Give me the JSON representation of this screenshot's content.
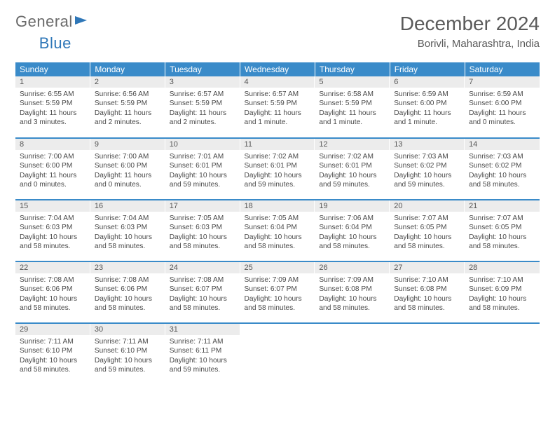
{
  "brand": {
    "part1": "General",
    "part2": "Blue"
  },
  "header": {
    "month": "December 2024",
    "location": "Borivli, Maharashtra, India"
  },
  "colors": {
    "header_bg": "#3a8bc9",
    "header_text": "#ffffff",
    "border": "#3a8bc9",
    "daynum_bg": "#ececec",
    "text": "#4a4a4a",
    "brand_gray": "#6a6a6a",
    "brand_blue": "#2f77b8",
    "bg": "#ffffff"
  },
  "typography": {
    "month_fontsize": 28,
    "location_fontsize": 15,
    "dayhead_fontsize": 12,
    "daynum_fontsize": 11,
    "body_fontsize": 10.2
  },
  "day_headers": [
    "Sunday",
    "Monday",
    "Tuesday",
    "Wednesday",
    "Thursday",
    "Friday",
    "Saturday"
  ],
  "weeks": [
    [
      {
        "n": "1",
        "sr": "Sunrise: 6:55 AM",
        "ss": "Sunset: 5:59 PM",
        "dl": "Daylight: 11 hours and 3 minutes."
      },
      {
        "n": "2",
        "sr": "Sunrise: 6:56 AM",
        "ss": "Sunset: 5:59 PM",
        "dl": "Daylight: 11 hours and 2 minutes."
      },
      {
        "n": "3",
        "sr": "Sunrise: 6:57 AM",
        "ss": "Sunset: 5:59 PM",
        "dl": "Daylight: 11 hours and 2 minutes."
      },
      {
        "n": "4",
        "sr": "Sunrise: 6:57 AM",
        "ss": "Sunset: 5:59 PM",
        "dl": "Daylight: 11 hours and 1 minute."
      },
      {
        "n": "5",
        "sr": "Sunrise: 6:58 AM",
        "ss": "Sunset: 5:59 PM",
        "dl": "Daylight: 11 hours and 1 minute."
      },
      {
        "n": "6",
        "sr": "Sunrise: 6:59 AM",
        "ss": "Sunset: 6:00 PM",
        "dl": "Daylight: 11 hours and 1 minute."
      },
      {
        "n": "7",
        "sr": "Sunrise: 6:59 AM",
        "ss": "Sunset: 6:00 PM",
        "dl": "Daylight: 11 hours and 0 minutes."
      }
    ],
    [
      {
        "n": "8",
        "sr": "Sunrise: 7:00 AM",
        "ss": "Sunset: 6:00 PM",
        "dl": "Daylight: 11 hours and 0 minutes."
      },
      {
        "n": "9",
        "sr": "Sunrise: 7:00 AM",
        "ss": "Sunset: 6:00 PM",
        "dl": "Daylight: 11 hours and 0 minutes."
      },
      {
        "n": "10",
        "sr": "Sunrise: 7:01 AM",
        "ss": "Sunset: 6:01 PM",
        "dl": "Daylight: 10 hours and 59 minutes."
      },
      {
        "n": "11",
        "sr": "Sunrise: 7:02 AM",
        "ss": "Sunset: 6:01 PM",
        "dl": "Daylight: 10 hours and 59 minutes."
      },
      {
        "n": "12",
        "sr": "Sunrise: 7:02 AM",
        "ss": "Sunset: 6:01 PM",
        "dl": "Daylight: 10 hours and 59 minutes."
      },
      {
        "n": "13",
        "sr": "Sunrise: 7:03 AM",
        "ss": "Sunset: 6:02 PM",
        "dl": "Daylight: 10 hours and 59 minutes."
      },
      {
        "n": "14",
        "sr": "Sunrise: 7:03 AM",
        "ss": "Sunset: 6:02 PM",
        "dl": "Daylight: 10 hours and 58 minutes."
      }
    ],
    [
      {
        "n": "15",
        "sr": "Sunrise: 7:04 AM",
        "ss": "Sunset: 6:03 PM",
        "dl": "Daylight: 10 hours and 58 minutes."
      },
      {
        "n": "16",
        "sr": "Sunrise: 7:04 AM",
        "ss": "Sunset: 6:03 PM",
        "dl": "Daylight: 10 hours and 58 minutes."
      },
      {
        "n": "17",
        "sr": "Sunrise: 7:05 AM",
        "ss": "Sunset: 6:03 PM",
        "dl": "Daylight: 10 hours and 58 minutes."
      },
      {
        "n": "18",
        "sr": "Sunrise: 7:05 AM",
        "ss": "Sunset: 6:04 PM",
        "dl": "Daylight: 10 hours and 58 minutes."
      },
      {
        "n": "19",
        "sr": "Sunrise: 7:06 AM",
        "ss": "Sunset: 6:04 PM",
        "dl": "Daylight: 10 hours and 58 minutes."
      },
      {
        "n": "20",
        "sr": "Sunrise: 7:07 AM",
        "ss": "Sunset: 6:05 PM",
        "dl": "Daylight: 10 hours and 58 minutes."
      },
      {
        "n": "21",
        "sr": "Sunrise: 7:07 AM",
        "ss": "Sunset: 6:05 PM",
        "dl": "Daylight: 10 hours and 58 minutes."
      }
    ],
    [
      {
        "n": "22",
        "sr": "Sunrise: 7:08 AM",
        "ss": "Sunset: 6:06 PM",
        "dl": "Daylight: 10 hours and 58 minutes."
      },
      {
        "n": "23",
        "sr": "Sunrise: 7:08 AM",
        "ss": "Sunset: 6:06 PM",
        "dl": "Daylight: 10 hours and 58 minutes."
      },
      {
        "n": "24",
        "sr": "Sunrise: 7:08 AM",
        "ss": "Sunset: 6:07 PM",
        "dl": "Daylight: 10 hours and 58 minutes."
      },
      {
        "n": "25",
        "sr": "Sunrise: 7:09 AM",
        "ss": "Sunset: 6:07 PM",
        "dl": "Daylight: 10 hours and 58 minutes."
      },
      {
        "n": "26",
        "sr": "Sunrise: 7:09 AM",
        "ss": "Sunset: 6:08 PM",
        "dl": "Daylight: 10 hours and 58 minutes."
      },
      {
        "n": "27",
        "sr": "Sunrise: 7:10 AM",
        "ss": "Sunset: 6:08 PM",
        "dl": "Daylight: 10 hours and 58 minutes."
      },
      {
        "n": "28",
        "sr": "Sunrise: 7:10 AM",
        "ss": "Sunset: 6:09 PM",
        "dl": "Daylight: 10 hours and 58 minutes."
      }
    ],
    [
      {
        "n": "29",
        "sr": "Sunrise: 7:11 AM",
        "ss": "Sunset: 6:10 PM",
        "dl": "Daylight: 10 hours and 58 minutes."
      },
      {
        "n": "30",
        "sr": "Sunrise: 7:11 AM",
        "ss": "Sunset: 6:10 PM",
        "dl": "Daylight: 10 hours and 59 minutes."
      },
      {
        "n": "31",
        "sr": "Sunrise: 7:11 AM",
        "ss": "Sunset: 6:11 PM",
        "dl": "Daylight: 10 hours and 59 minutes."
      },
      null,
      null,
      null,
      null
    ]
  ]
}
